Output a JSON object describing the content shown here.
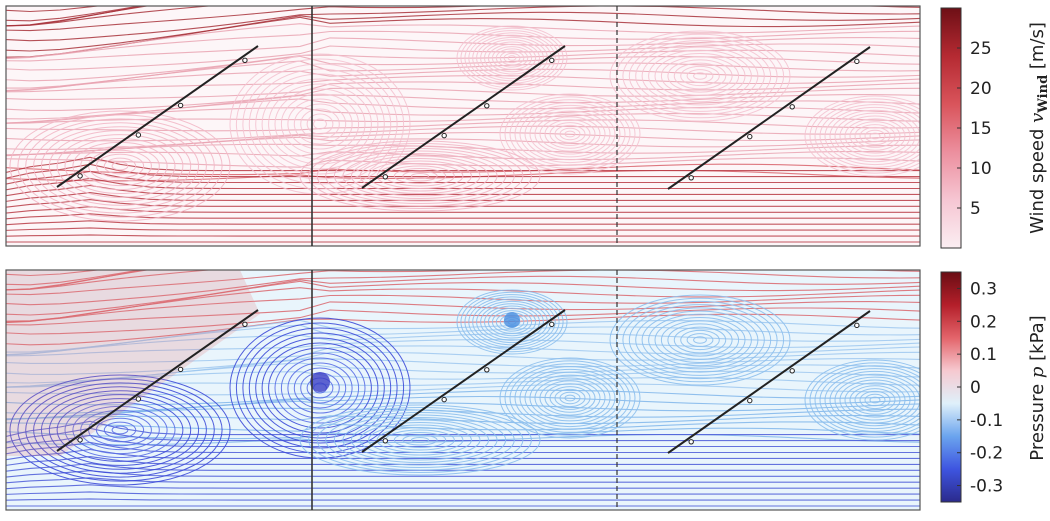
{
  "panels": [
    {
      "id": "wind",
      "colorbar": {
        "title_prefix": "Wind speed ",
        "title_symbol": "v",
        "title_subscript": "Wind",
        "title_unit": " [m/s]",
        "ticks": [
          "25",
          "20",
          "15",
          "10",
          "5"
        ],
        "range": [
          0,
          30
        ],
        "tick_values": [
          25,
          20,
          15,
          10,
          5
        ],
        "colors": [
          "#fbeef2",
          "#f6c6d3",
          "#ec8f9e",
          "#d9545b",
          "#b52a32",
          "#6e0f16"
        ]
      }
    },
    {
      "id": "pressure",
      "colorbar": {
        "title_prefix": "Pressure ",
        "title_symbol": "p",
        "title_unit": " [kPa]",
        "ticks": [
          "0.3",
          "0.2",
          "0.1",
          "0",
          "-0.1",
          "-0.2",
          "-0.3"
        ],
        "range": [
          -0.35,
          0.35
        ],
        "tick_values": [
          0.3,
          0.2,
          0.1,
          0,
          -0.1,
          -0.2,
          -0.3
        ],
        "colors": [
          "#2b2a8c",
          "#3e55e0",
          "#6ba4ee",
          "#dff0fa",
          "#f6c9d0",
          "#e3646a",
          "#b41f2a",
          "#6a0d14"
        ]
      }
    }
  ]
}
